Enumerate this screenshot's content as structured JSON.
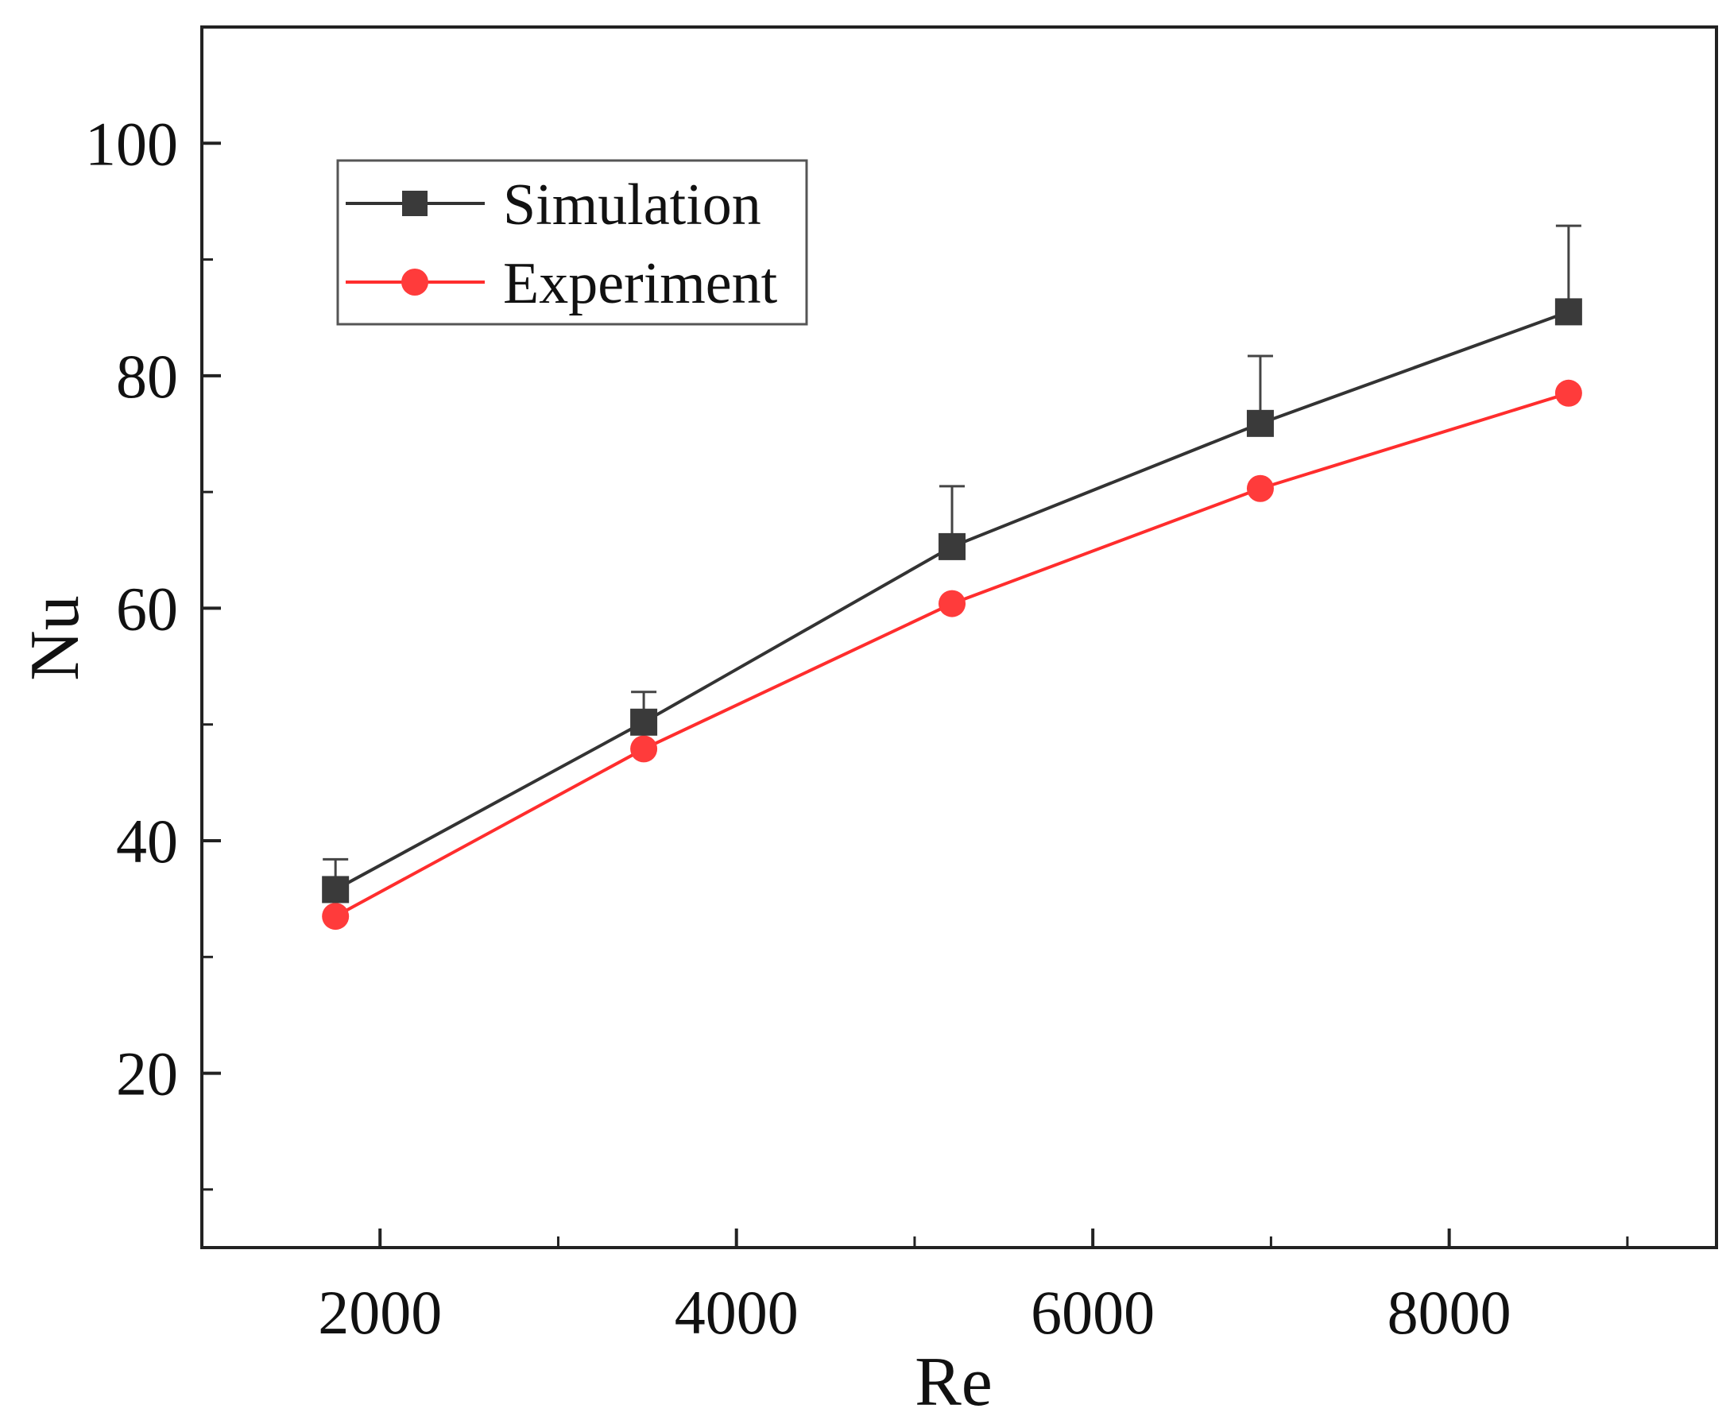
{
  "chart_data": {
    "type": "line",
    "title": "",
    "xlabel": "Re",
    "ylabel": "Nu",
    "xlim": [
      1000,
      9500
    ],
    "ylim": [
      5,
      110
    ],
    "xticks": [
      2000,
      4000,
      6000,
      8000
    ],
    "xticks_minor": [
      3000,
      5000,
      7000,
      9000
    ],
    "yticks": [
      20,
      40,
      60,
      80,
      100
    ],
    "yticks_minor": [
      10,
      30,
      50,
      70,
      90
    ],
    "x": [
      1750,
      3480,
      5210,
      6940,
      8670
    ],
    "series": [
      {
        "name": "Simulation",
        "color": "#333333",
        "marker": "square",
        "values": [
          35.8,
          50.2,
          65.3,
          75.9,
          85.5
        ],
        "error_upper": [
          2.6,
          2.6,
          5.2,
          5.8,
          7.4
        ]
      },
      {
        "name": "Experiment",
        "color": "#ff2d2d",
        "marker": "circle",
        "values": [
          33.5,
          47.9,
          60.4,
          70.3,
          78.5
        ]
      }
    ],
    "legend_position": "top-left",
    "grid": false
  }
}
